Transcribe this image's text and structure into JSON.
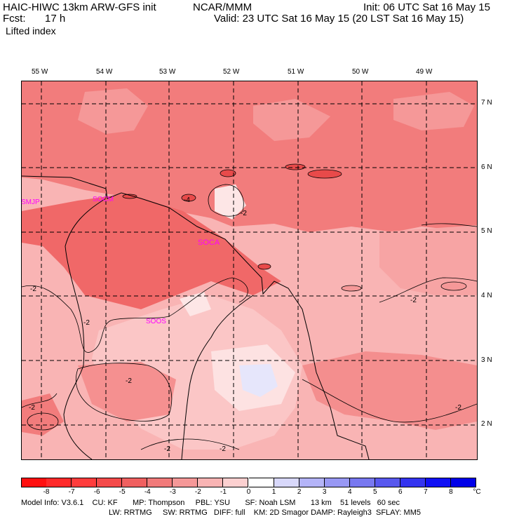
{
  "header": {
    "model": "HAIC-HIWC 13km ARW-GFS init",
    "org": "NCAR/MMM",
    "init": "Init: 06 UTC Sat 16 May 15",
    "fcst_label": "Fcst:",
    "fcst_value": "17 h",
    "valid": "Valid: 23 UTC Sat 16 May 15 (20 LST Sat 16 May 15)",
    "field": "Lifted index"
  },
  "map": {
    "longitude_labels": [
      "55 W",
      "54 W",
      "53 W",
      "52 W",
      "51 W",
      "50 W",
      "49 W"
    ],
    "latitude_labels": [
      "7 N",
      "6 N",
      "5 N",
      "4 N",
      "3 N",
      "2 N"
    ],
    "stations": [
      "SMJP",
      "SOCM",
      "SOCA",
      "SOOS"
    ],
    "contour_labels": [
      "-4",
      "-2",
      "-2",
      "-2",
      "-2",
      "-2",
      "-2",
      "-2",
      "-2",
      "-2"
    ]
  },
  "colorbar": {
    "ticks": [
      "-8",
      "-7",
      "-6",
      "-5",
      "-4",
      "-3",
      "-2",
      "-1",
      "0",
      "1",
      "2",
      "3",
      "4",
      "5",
      "6",
      "7",
      "8"
    ],
    "unit": "°C",
    "colors": [
      "#ff1010",
      "#ff2a2a",
      "#ff3c3c",
      "#f44a4a",
      "#f06060",
      "#f17a7a",
      "#f59898",
      "#f9b4b4",
      "#fcd0d0",
      "#ffffff",
      "#d8d8fb",
      "#b4b4f8",
      "#9898f4",
      "#7878f0",
      "#5858ee",
      "#3434f0",
      "#1010f4",
      "#0000e8"
    ]
  },
  "model_info": {
    "line1": "Model Info: V3.6.1    CU: KF       MP: Thompson     PBL: YSU       SF: Noah LSM       13 km    51 levels   60 sec",
    "line2": "LW: RRTMG     SW: RRTMG   DIFF: full    KM: 2D Smagor DAMP: Rayleigh3  SFLAY: MM5"
  }
}
